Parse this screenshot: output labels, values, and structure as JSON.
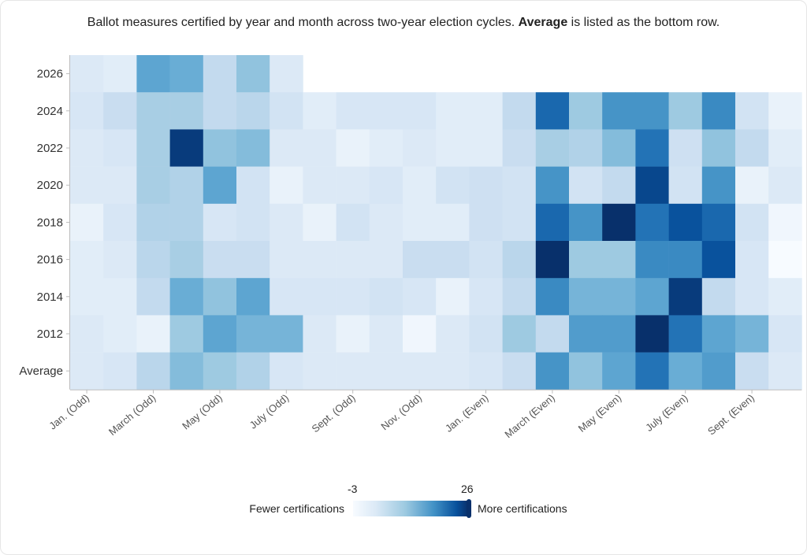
{
  "title": {
    "prefix": "Ballot measures certified by year and month across two-year election cycles. ",
    "bold": "Average",
    "suffix": " is listed as the bottom row."
  },
  "legend": {
    "min_label": "-3",
    "max_label": "26",
    "left_label": "Fewer certifications",
    "right_label": "More certifications"
  },
  "chart_data": {
    "type": "heatmap",
    "rows": [
      "2026",
      "2024",
      "2022",
      "2020",
      "2018",
      "2016",
      "2014",
      "2012",
      "Average"
    ],
    "columns": [
      "Jan. (Odd)",
      "Feb. (Odd)",
      "March (Odd)",
      "April (Odd)",
      "May (Odd)",
      "June (Odd)",
      "July (Odd)",
      "Aug. (Odd)",
      "Sept. (Odd)",
      "Oct. (Odd)",
      "Nov. (Odd)",
      "Dec. (Odd)",
      "Jan. (Even)",
      "Feb. (Even)",
      "March (Even)",
      "April (Even)",
      "May (Even)",
      "June (Even)",
      "July (Even)",
      "Aug. (Even)",
      "Sept. (Even)",
      "Oct. (Even)"
    ],
    "x_tick_labels": [
      "Jan. (Odd)",
      "March (Odd)",
      "May (Odd)",
      "July (Odd)",
      "Sept. (Odd)",
      "Nov. (Odd)",
      "Jan. (Even)",
      "March (Even)",
      "May (Even)",
      "July (Even)",
      "Sept. (Even)"
    ],
    "values": [
      [
        1,
        0,
        15,
        14,
        6,
        11,
        1,
        null,
        null,
        null,
        null,
        null,
        null,
        null,
        null,
        null,
        null,
        null,
        null,
        null,
        null,
        null
      ],
      [
        2,
        5,
        9,
        9,
        6,
        7,
        3,
        0,
        2,
        2,
        2,
        0,
        0,
        6,
        21,
        10,
        17,
        17,
        10,
        18,
        3,
        -1
      ],
      [
        1,
        2,
        9,
        25,
        11,
        12,
        1,
        1,
        -1,
        0,
        1,
        0,
        0,
        5,
        9,
        8,
        12,
        20,
        4,
        11,
        6,
        0
      ],
      [
        1,
        1,
        9,
        8,
        15,
        3,
        -1,
        1,
        1,
        2,
        0,
        3,
        4,
        3,
        17,
        3,
        6,
        24,
        3,
        17,
        -1,
        1
      ],
      [
        -1,
        2,
        8,
        8,
        2,
        3,
        1,
        -1,
        3,
        1,
        0,
        0,
        4,
        3,
        21,
        17,
        26,
        20,
        23,
        21,
        3,
        -2
      ],
      [
        0,
        1,
        7,
        9,
        5,
        5,
        1,
        1,
        1,
        1,
        5,
        5,
        3,
        7,
        29,
        10,
        10,
        18,
        18,
        23,
        2,
        -3
      ],
      [
        0,
        0,
        6,
        14,
        11,
        15,
        2,
        2,
        2,
        3,
        2,
        -1,
        2,
        6,
        18,
        13,
        13,
        15,
        25,
        6,
        2,
        0
      ],
      [
        1,
        0,
        -1,
        10,
        15,
        13,
        13,
        1,
        -1,
        1,
        -2,
        1,
        3,
        10,
        6,
        16,
        16,
        27,
        20,
        15,
        13,
        2
      ],
      [
        1,
        2,
        7,
        12,
        10,
        8,
        2,
        1,
        1,
        1,
        1,
        1,
        2,
        5,
        17,
        11,
        15,
        20,
        14,
        16,
        5,
        1
      ]
    ],
    "color_range": [
      -3,
      26
    ],
    "colors": {
      "low": "#f7fbff",
      "high": "#08306b"
    }
  }
}
